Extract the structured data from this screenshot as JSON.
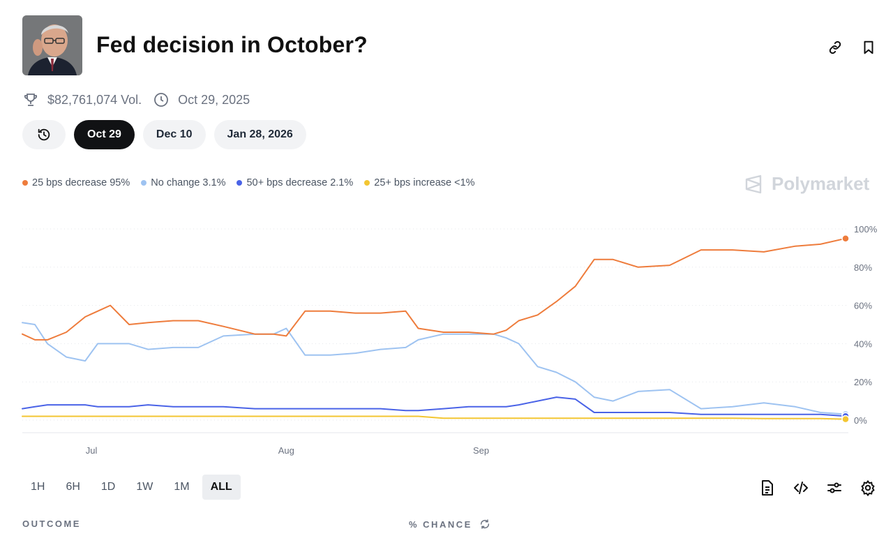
{
  "market": {
    "title": "Fed decision in October?",
    "volume": "$82,761,074 Vol.",
    "end_date": "Oct 29, 2025",
    "avatar_icon": "person-portrait"
  },
  "header_actions": [
    {
      "name": "link-icon"
    },
    {
      "name": "bookmark-icon"
    }
  ],
  "date_pills": {
    "history_icon": "history-clock-icon",
    "items": [
      {
        "label": "Oct 29",
        "active": true
      },
      {
        "label": "Dec 10",
        "active": false
      },
      {
        "label": "Jan 28, 2026",
        "active": false
      }
    ]
  },
  "legend": [
    {
      "label": "25 bps decrease 95%",
      "color": "#ee7c3c"
    },
    {
      "label": "No change 3.1%",
      "color": "#9ec3f1"
    },
    {
      "label": "50+ bps decrease 2.1%",
      "color": "#4a63e7"
    },
    {
      "label": "25+ bps increase <1%",
      "color": "#f3c632"
    }
  ],
  "brand": {
    "name": "Polymarket"
  },
  "chart_data": {
    "type": "line",
    "x_ticks": [
      "Jul",
      "Aug",
      "Sep"
    ],
    "y_ticks": [
      "100%",
      "80%",
      "60%",
      "40%",
      "20%",
      "0%"
    ],
    "ylim": [
      0,
      100
    ],
    "grid": true,
    "x": [
      "Jun 20",
      "Jun 22",
      "Jun 24",
      "Jun 27",
      "Jun 30",
      "Jul 2",
      "Jul 4",
      "Jul 7",
      "Jul 10",
      "Jul 14",
      "Jul 18",
      "Jul 22",
      "Jul 27",
      "Jul 30",
      "Aug 1",
      "Aug 4",
      "Aug 8",
      "Aug 12",
      "Aug 16",
      "Aug 20",
      "Aug 22",
      "Aug 26",
      "Aug 30",
      "Sep 3",
      "Sep 5",
      "Sep 7",
      "Sep 10",
      "Sep 13",
      "Sep 16",
      "Sep 19",
      "Sep 22",
      "Sep 26",
      "Oct 1",
      "Oct 6",
      "Oct 11",
      "Oct 16",
      "Oct 21",
      "Oct 25",
      "Oct 29"
    ],
    "series": [
      {
        "name": "25 bps decrease",
        "color": "#ee7c3c",
        "values": [
          45,
          42,
          42,
          46,
          54,
          57,
          60,
          50,
          51,
          52,
          52,
          49,
          45,
          45,
          44,
          57,
          57,
          56,
          56,
          57,
          48,
          46,
          46,
          45,
          47,
          52,
          55,
          62,
          70,
          84,
          84,
          80,
          81,
          89,
          89,
          88,
          91,
          92,
          95
        ]
      },
      {
        "name": "No change",
        "color": "#9ec3f1",
        "values": [
          51,
          50,
          40,
          33,
          31,
          40,
          40,
          40,
          37,
          38,
          38,
          44,
          45,
          45,
          48,
          34,
          34,
          35,
          37,
          38,
          42,
          45,
          45,
          45,
          43,
          40,
          28,
          25,
          20,
          12,
          10,
          15,
          16,
          6,
          7,
          9,
          7,
          4,
          3.1
        ]
      },
      {
        "name": "50+ bps decrease",
        "color": "#4a63e7",
        "values": [
          6,
          7,
          8,
          8,
          8,
          7,
          7,
          7,
          8,
          7,
          7,
          7,
          6,
          6,
          6,
          6,
          6,
          6,
          6,
          5,
          5,
          6,
          7,
          7,
          7,
          8,
          10,
          12,
          11,
          4,
          4,
          4,
          4,
          3,
          3,
          3,
          3,
          3,
          2.1
        ]
      },
      {
        "name": "25+ bps increase",
        "color": "#f3c632",
        "values": [
          2,
          2,
          2,
          2,
          2,
          2,
          2,
          2,
          2,
          2,
          2,
          2,
          2,
          2,
          2,
          2,
          2,
          2,
          2,
          2,
          2,
          1,
          1,
          1,
          1,
          1,
          1,
          1,
          1,
          1,
          1,
          1,
          1,
          1,
          1,
          0.8,
          0.8,
          0.8,
          0.5
        ]
      }
    ]
  },
  "time_ranges": [
    {
      "label": "1H",
      "active": false
    },
    {
      "label": "6H",
      "active": false
    },
    {
      "label": "1D",
      "active": false
    },
    {
      "label": "1W",
      "active": false
    },
    {
      "label": "1M",
      "active": false
    },
    {
      "label": "ALL",
      "active": true
    }
  ],
  "chart_tools": [
    {
      "name": "document-icon"
    },
    {
      "name": "embed-code-icon"
    },
    {
      "name": "filters-icon"
    },
    {
      "name": "settings-gear-icon"
    }
  ],
  "table_header": {
    "outcome": "OUTCOME",
    "chance": "% CHANCE"
  }
}
